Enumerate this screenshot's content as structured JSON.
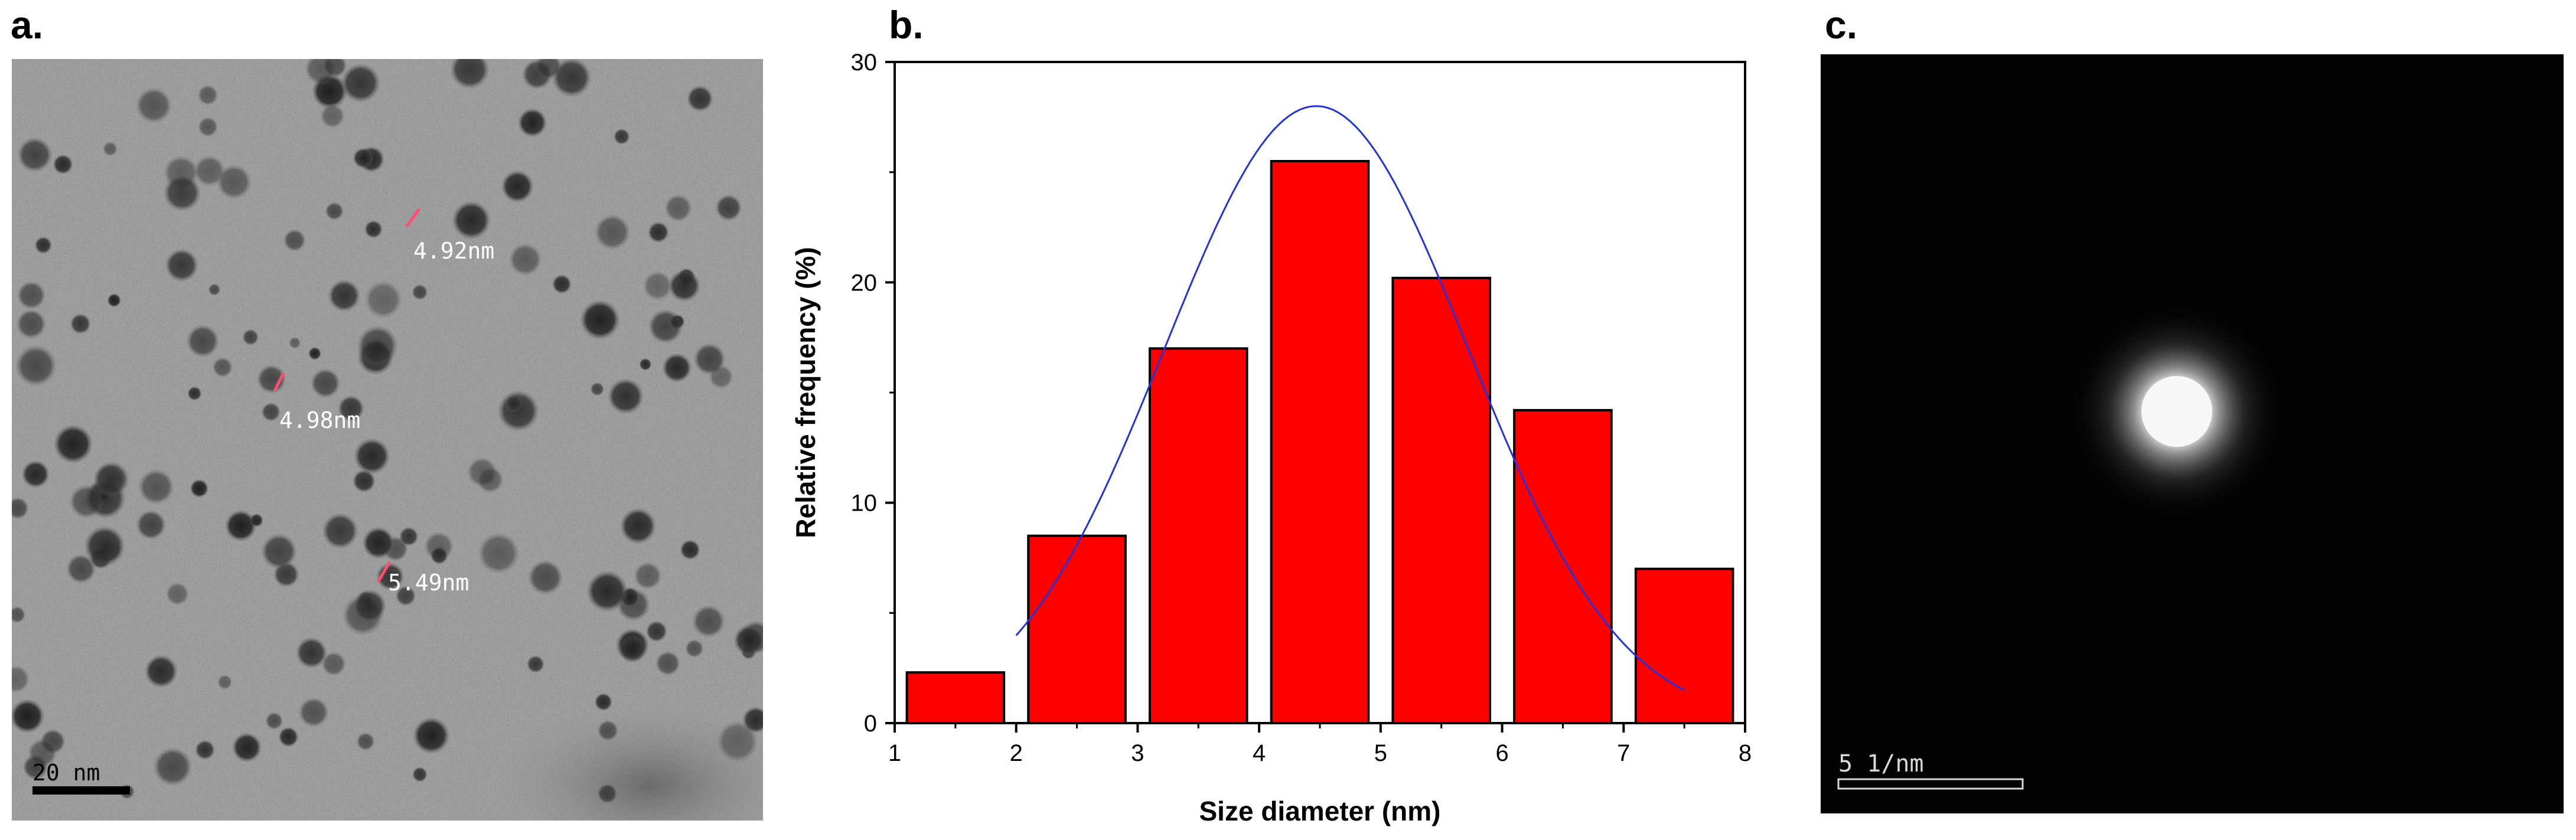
{
  "panels": {
    "a": {
      "label": "a.",
      "measurements": [
        "4.92nm",
        "4.98nm",
        "5.49nm"
      ],
      "scale_bar": "20 nm"
    },
    "b": {
      "label": "b."
    },
    "c": {
      "label": "c.",
      "scale_bar": "5 1/nm"
    }
  },
  "colors": {
    "bar_fill": "#ff0000",
    "fit_curve": "#2233dd",
    "tem_background": "#8e8e8e",
    "diffraction_background": "#030303"
  },
  "chart_data": {
    "type": "bar",
    "title": "",
    "xlabel": "Size diameter (nm)",
    "ylabel": "Relative frequency (%)",
    "xlim": [
      1,
      8
    ],
    "ylim": [
      0,
      30
    ],
    "xticks": [
      1,
      2,
      3,
      4,
      5,
      6,
      7,
      8
    ],
    "yticks": [
      0,
      10,
      20,
      30
    ],
    "bins": [
      {
        "from": 1.1,
        "to": 1.9,
        "value": 2.3
      },
      {
        "from": 2.1,
        "to": 2.9,
        "value": 8.5
      },
      {
        "from": 3.1,
        "to": 3.9,
        "value": 17.0
      },
      {
        "from": 4.1,
        "to": 4.9,
        "value": 25.5
      },
      {
        "from": 5.1,
        "to": 5.9,
        "value": 20.2
      },
      {
        "from": 6.1,
        "to": 6.9,
        "value": 14.2
      },
      {
        "from": 7.1,
        "to": 7.9,
        "value": 7.0
      }
    ],
    "fit": {
      "type": "gaussian",
      "amplitude": 28.0,
      "center": 4.47,
      "sigma": 1.25,
      "x_range": [
        2.0,
        7.5
      ]
    }
  }
}
